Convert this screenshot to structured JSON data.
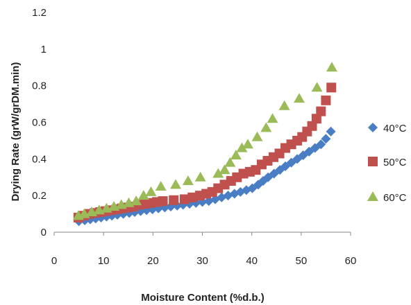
{
  "chart_data": {
    "type": "scatter",
    "title": "",
    "xlabel": "Moisture Content (%d.b.)",
    "ylabel": "Drying Rate  (grW/grDM.min)",
    "xlim": [
      0,
      60
    ],
    "ylim": [
      0,
      1.2
    ],
    "xticks": [
      "0",
      "10",
      "20",
      "30",
      "40",
      "50",
      "60"
    ],
    "yticks": [
      "0",
      "0.2",
      "0.4",
      "0.6",
      "0.8",
      "1",
      "1.2"
    ],
    "grid": false,
    "legend_position": "right",
    "series": [
      {
        "name": "40°C",
        "marker": "diamond",
        "color": "#4a7ec4",
        "x": [
          5.0,
          6.2,
          7.3,
          8.4,
          9.5,
          10.6,
          11.7,
          12.8,
          14.0,
          15.2,
          16.3,
          17.5,
          18.7,
          19.9,
          21.1,
          22.4,
          23.6,
          24.9,
          26.1,
          27.4,
          28.7,
          30.0,
          31.3,
          32.6,
          33.9,
          35.2,
          36.5,
          37.7,
          38.9,
          40.1,
          41.3,
          42.3,
          43.3,
          44.5,
          45.7,
          46.8,
          48.0,
          49.2,
          50.4,
          51.6,
          52.8,
          54.0,
          55.0,
          56.0
        ],
        "y": [
          0.06,
          0.065,
          0.07,
          0.075,
          0.08,
          0.085,
          0.09,
          0.095,
          0.1,
          0.105,
          0.11,
          0.115,
          0.12,
          0.125,
          0.13,
          0.135,
          0.14,
          0.145,
          0.15,
          0.155,
          0.16,
          0.165,
          0.17,
          0.18,
          0.19,
          0.2,
          0.21,
          0.22,
          0.23,
          0.24,
          0.26,
          0.28,
          0.3,
          0.32,
          0.34,
          0.36,
          0.38,
          0.4,
          0.42,
          0.44,
          0.46,
          0.48,
          0.51,
          0.55
        ]
      },
      {
        "name": "50°C",
        "marker": "square",
        "color": "#c0504d",
        "x": [
          4.9,
          6.0,
          7.1,
          8.2,
          9.3,
          10.4,
          11.5,
          12.6,
          13.7,
          14.9,
          16.0,
          17.2,
          18.4,
          19.6,
          20.8,
          22.0,
          24.2,
          26.4,
          28.0,
          29.5,
          30.8,
          32.0,
          33.2,
          34.5,
          35.8,
          37.0,
          38.3,
          39.6,
          40.8,
          42.0,
          43.2,
          44.4,
          45.6,
          46.8,
          48.0,
          49.2,
          50.2,
          51.2,
          52.2,
          53.1,
          54.0,
          55.0,
          56.1
        ],
        "y": [
          0.08,
          0.09,
          0.1,
          0.105,
          0.11,
          0.115,
          0.12,
          0.125,
          0.13,
          0.135,
          0.14,
          0.15,
          0.155,
          0.16,
          0.165,
          0.17,
          0.175,
          0.18,
          0.19,
          0.2,
          0.21,
          0.22,
          0.24,
          0.26,
          0.28,
          0.3,
          0.32,
          0.33,
          0.34,
          0.37,
          0.39,
          0.41,
          0.43,
          0.46,
          0.48,
          0.5,
          0.52,
          0.55,
          0.58,
          0.62,
          0.66,
          0.72,
          0.79
        ]
      },
      {
        "name": "60°C",
        "marker": "triangle",
        "color": "#9bbb59",
        "x": [
          4.9,
          6.1,
          7.6,
          9.1,
          10.6,
          12.1,
          13.6,
          15.1,
          16.6,
          18.1,
          19.6,
          21.6,
          24.6,
          27.1,
          29.6,
          33.2,
          34.5,
          35.6,
          36.8,
          38.0,
          39.2,
          41.1,
          42.9,
          44.2,
          46.6,
          49.6,
          53.2,
          56.2
        ],
        "y": [
          0.09,
          0.1,
          0.11,
          0.12,
          0.13,
          0.14,
          0.15,
          0.16,
          0.17,
          0.2,
          0.22,
          0.25,
          0.26,
          0.28,
          0.3,
          0.32,
          0.34,
          0.38,
          0.42,
          0.46,
          0.48,
          0.52,
          0.57,
          0.62,
          0.69,
          0.73,
          0.79,
          0.9
        ]
      }
    ]
  }
}
